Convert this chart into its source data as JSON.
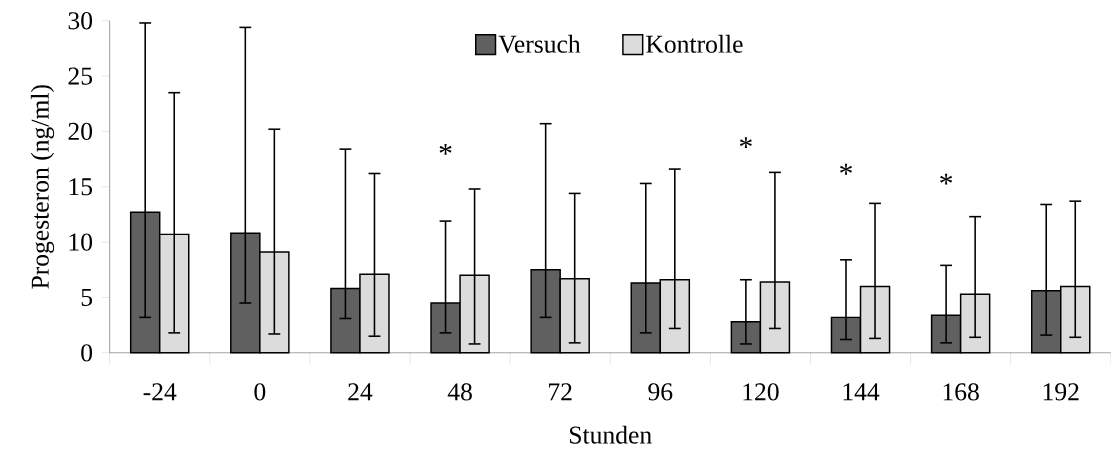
{
  "chart_data": {
    "type": "bar",
    "xlabel": "Stunden",
    "ylabel": "Progesteron (ng/ml)",
    "categories": [
      "-24",
      "0",
      "24",
      "48",
      "72",
      "96",
      "120",
      "144",
      "168",
      "192"
    ],
    "series": [
      {
        "name": "Versuch",
        "color": "#606060",
        "values": [
          12.7,
          10.8,
          5.8,
          4.5,
          7.5,
          6.3,
          2.8,
          3.2,
          3.4,
          5.6
        ],
        "errors": [
          [
            3.2,
            29.8
          ],
          [
            4.5,
            29.4
          ],
          [
            3.1,
            18.4
          ],
          [
            1.8,
            11.9
          ],
          [
            3.2,
            20.7
          ],
          [
            1.8,
            15.3
          ],
          [
            0.8,
            6.6
          ],
          [
            1.2,
            8.4
          ],
          [
            0.9,
            7.9
          ],
          [
            1.6,
            13.4
          ]
        ]
      },
      {
        "name": "Kontrolle",
        "color": "#dcdcdc",
        "values": [
          10.7,
          9.1,
          7.1,
          7.0,
          6.7,
          6.6,
          6.4,
          6.0,
          5.3,
          6.0
        ],
        "errors": [
          [
            1.8,
            23.5
          ],
          [
            1.7,
            20.2
          ],
          [
            1.5,
            16.2
          ],
          [
            0.8,
            14.8
          ],
          [
            0.9,
            14.4
          ],
          [
            2.2,
            16.6
          ],
          [
            2.2,
            16.3
          ],
          [
            1.3,
            13.5
          ],
          [
            1.4,
            12.3
          ],
          [
            1.4,
            13.7
          ]
        ]
      }
    ],
    "annotations": [
      "*",
      "*",
      "*",
      "*"
    ],
    "ylim": [
      0,
      30
    ],
    "yticks": [
      0,
      5,
      10,
      15,
      20,
      25,
      30
    ],
    "grid": false,
    "legend": "top"
  }
}
